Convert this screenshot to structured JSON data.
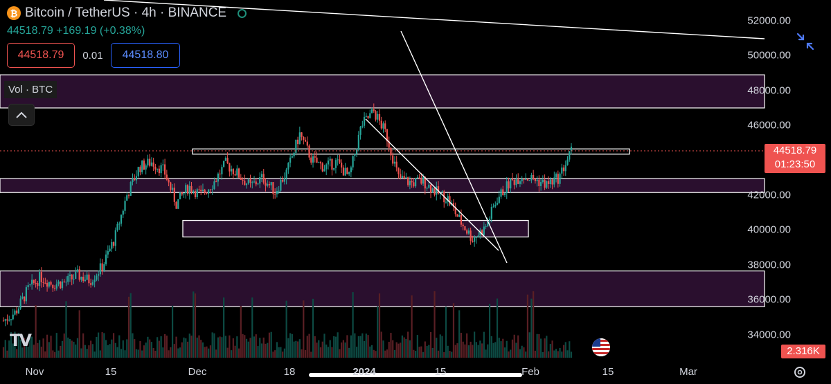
{
  "header": {
    "coin_symbol": "₿",
    "title": "Bitcoin / TetherUS · 4h · BINANCE",
    "price_line": "44518.79 +169.19 (+0.38%)",
    "bid": "44518.79",
    "spread": "0.01",
    "ask": "44518.80"
  },
  "indicator": {
    "label": "Vol · BTC"
  },
  "price_axis": {
    "ticks": [
      "52000.00",
      "50000.00",
      "48000.00",
      "46000.00",
      "42000.00",
      "40000.00",
      "38000.00",
      "36000.00",
      "34000.00"
    ],
    "current_price": "44518.79",
    "countdown": "01:23:50",
    "volume_value": "2.316K"
  },
  "time_axis": {
    "ticks": [
      "Nov",
      "15",
      "Dec",
      "18",
      "2024",
      "15",
      "Feb",
      "15",
      "Mar"
    ]
  },
  "colors": {
    "up": "#26a69a",
    "down": "#ef5350",
    "zone_fill": "#2a0f2e",
    "zone_border": "#ffffff",
    "accent": "#2962ff"
  },
  "icons": {
    "collapse": "arrows-inward-icon",
    "chevron": "chevron-up-icon",
    "settings": "settings-gear-icon",
    "flag": "us-flag-icon",
    "logo": "tradingview-logo"
  },
  "chart_data": {
    "type": "candlestick",
    "symbol": "Bitcoin / TetherUS",
    "interval": "4h",
    "exchange": "BINANCE",
    "ylim": [
      33000,
      53000
    ],
    "x_labels": [
      "Nov",
      "15",
      "Dec",
      "18",
      "2024",
      "15",
      "Feb",
      "15",
      "Mar"
    ],
    "price_path": [
      [
        "Nov",
        34800
      ],
      [
        "",
        35300
      ],
      [
        "",
        36600
      ],
      [
        "",
        37300
      ],
      [
        "15",
        36900
      ],
      [
        "",
        37000
      ],
      [
        "",
        37400
      ],
      [
        "",
        37100
      ],
      [
        "",
        37900
      ],
      [
        "Dec",
        39500
      ],
      [
        "",
        42000
      ],
      [
        "",
        43600
      ],
      [
        "",
        43900
      ],
      [
        "",
        43400
      ],
      [
        "",
        41500
      ],
      [
        "",
        42500
      ],
      [
        "18",
        42000
      ],
      [
        "",
        42700
      ],
      [
        "",
        43800
      ],
      [
        "",
        43200
      ],
      [
        "",
        42500
      ],
      [
        "",
        43000
      ],
      [
        "",
        42200
      ],
      [
        "",
        43400
      ],
      [
        "",
        45500
      ],
      [
        "",
        44000
      ],
      [
        "",
        43600
      ],
      [
        "",
        43900
      ],
      [
        "2024",
        43000
      ],
      [
        "",
        46000
      ],
      [
        "",
        46800
      ],
      [
        "",
        45500
      ],
      [
        "",
        43000
      ],
      [
        "",
        42700
      ],
      [
        "15",
        42800
      ],
      [
        "",
        42200
      ],
      [
        "",
        41800
      ],
      [
        "",
        40500
      ],
      [
        "",
        39500
      ],
      [
        "",
        40100
      ],
      [
        "",
        41800
      ],
      [
        "",
        42700
      ],
      [
        "Feb",
        43100
      ],
      [
        "",
        42900
      ],
      [
        "",
        42600
      ],
      [
        "",
        43000
      ],
      [
        "",
        44519
      ]
    ],
    "zones": [
      {
        "from": 47000,
        "to": 48900
      },
      {
        "from": 42150,
        "to": 42950
      },
      {
        "from": 35600,
        "to": 37650
      }
    ],
    "levels": [
      44500,
      40000
    ]
  }
}
